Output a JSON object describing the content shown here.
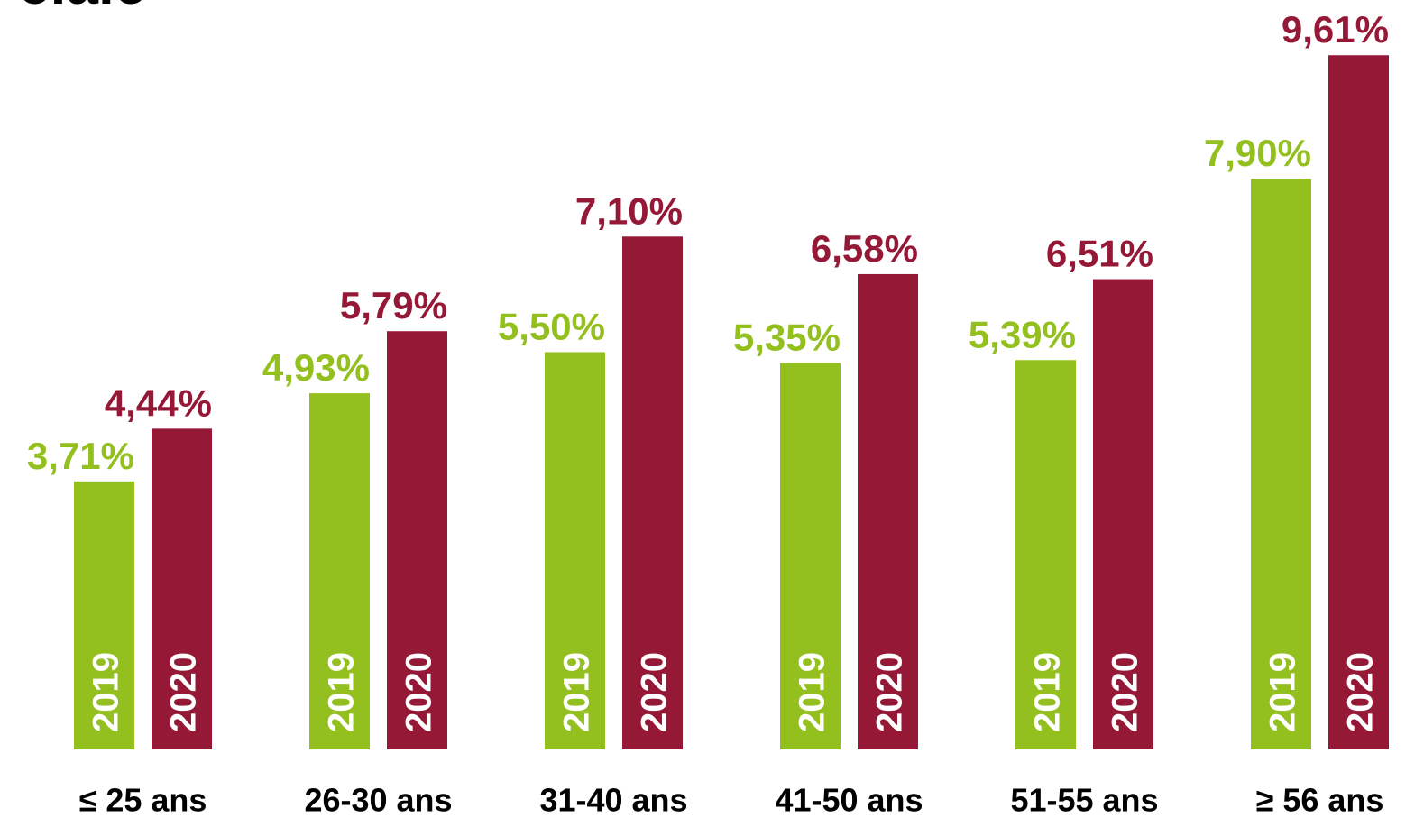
{
  "chart_data": {
    "type": "bar",
    "title": "ciale",
    "categories": [
      "≤ 25 ans",
      "26-30 ans",
      "31-40 ans",
      "41-50 ans",
      "51-55 ans",
      "≥ 56 ans"
    ],
    "series": [
      {
        "name": "2019",
        "color": "#93c01f",
        "values": [
          3.71,
          4.93,
          5.5,
          5.35,
          5.39,
          7.9
        ],
        "value_labels": [
          "3,71%",
          "4,93%",
          "5,50%",
          "5,35%",
          "5,39%",
          "7,90%"
        ]
      },
      {
        "name": "2020",
        "color": "#951936",
        "values": [
          4.44,
          5.79,
          7.1,
          6.58,
          6.51,
          9.61
        ],
        "value_labels": [
          "4,44%",
          "5,79%",
          "7,10%",
          "6,58%",
          "6,51%",
          "9,61%"
        ]
      }
    ],
    "ylim": [
      0,
      10
    ]
  }
}
